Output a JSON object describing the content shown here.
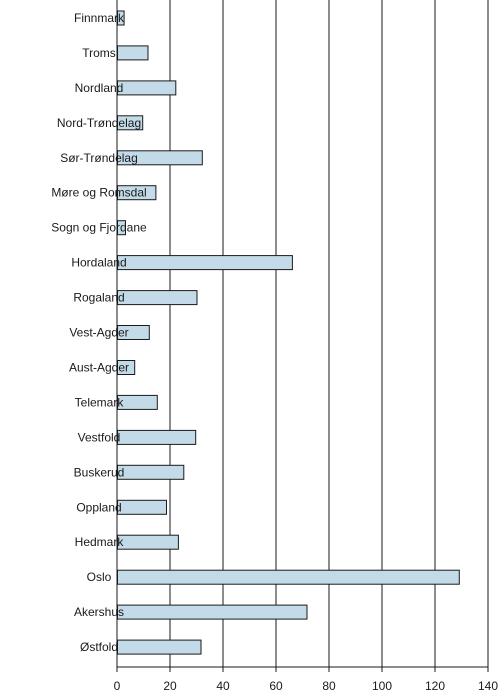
{
  "chart_data": {
    "type": "bar",
    "orientation": "horizontal",
    "categories": [
      "Finnmark",
      "Troms",
      "Nordland",
      "Nord-Trøndelag",
      "Sør-Trøndelag",
      "Møre og Romsdal",
      "Sogn og Fjordane",
      "Hordaland",
      "Rogaland",
      "Vest-Agder",
      "Aust-Agder",
      "Telemark",
      "Vestfold",
      "Buskerud",
      "Oppland",
      "Hedmark",
      "Oslo",
      "Akershus",
      "Østfold"
    ],
    "values": [
      2.5,
      11.5,
      22,
      9.5,
      32,
      14.5,
      3,
      66,
      30,
      12,
      6.5,
      15,
      29.5,
      25,
      18.5,
      23,
      129,
      71.5,
      31.5
    ],
    "xlim": [
      0,
      140
    ],
    "xticks": [
      0,
      20,
      40,
      60,
      80,
      100,
      120,
      140
    ],
    "title": "",
    "xlabel": "",
    "ylabel": "",
    "grid": "vertical",
    "legend": "none",
    "colors": {
      "bar_fill": "#c3dbe8",
      "bar_stroke": "#1a1a1a",
      "grid": "#1a1a1a",
      "text": "#1a1a1a"
    }
  }
}
